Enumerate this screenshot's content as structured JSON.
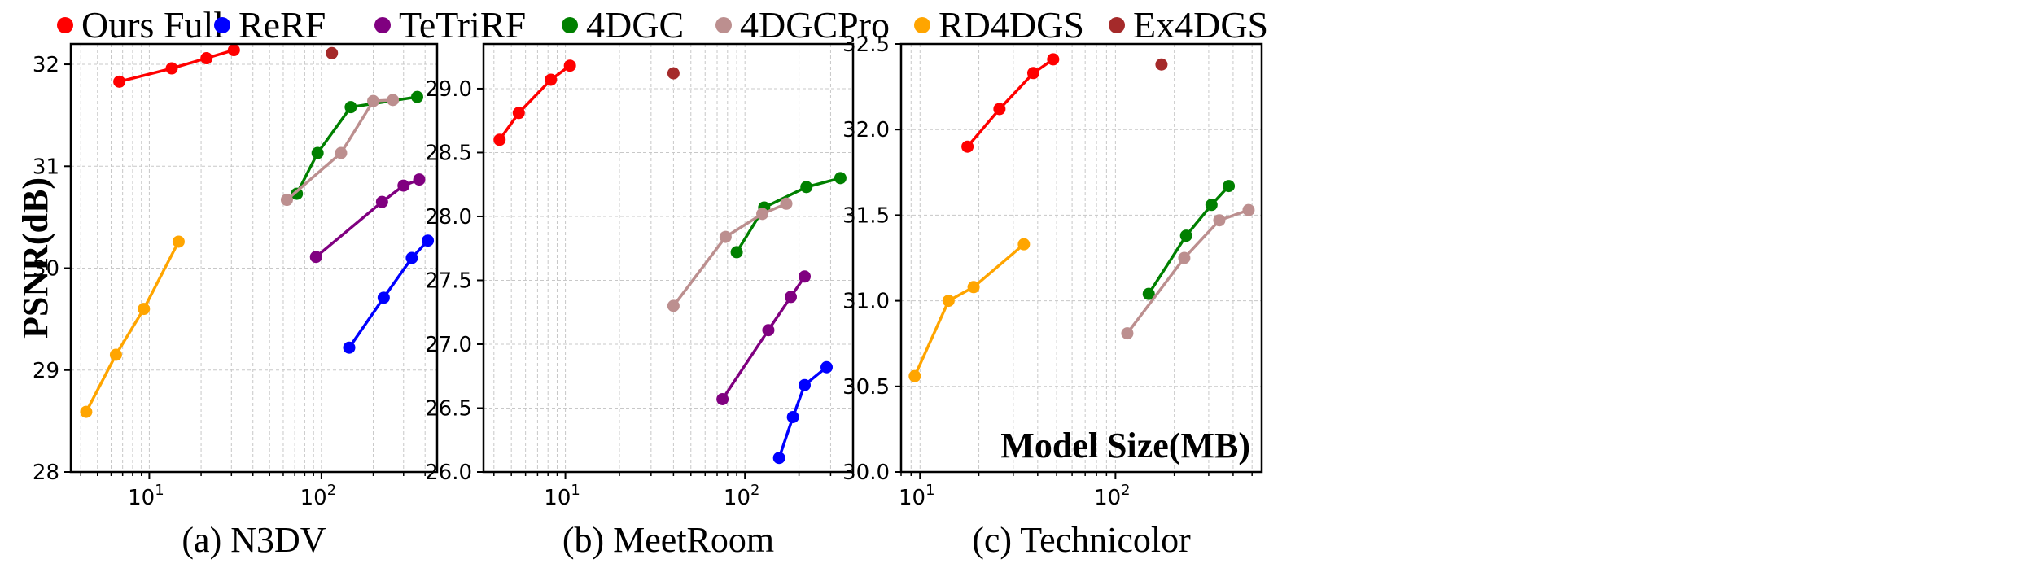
{
  "legend": [
    {
      "name": "Ours Full",
      "color": "#ff0000"
    },
    {
      "name": "ReRF",
      "color": "#0000ff"
    },
    {
      "name": "TeTriRF",
      "color": "#800080"
    },
    {
      "name": "4DGC",
      "color": "#008000"
    },
    {
      "name": "4DGCPro",
      "color": "#bc8f8f"
    },
    {
      "name": "RD4DGS",
      "color": "#ffa500"
    },
    {
      "name": "Ex4DGS",
      "color": "#a52a2a"
    }
  ],
  "chart_data": [
    {
      "type": "line",
      "caption": "(a) N3DV",
      "ylabel": "PSNR(dB)",
      "xlabel": "",
      "xscale": "log",
      "xlim": [
        3.5,
        470
      ],
      "ylim": [
        28,
        32.2
      ],
      "grid": true,
      "yticks": [
        28,
        29,
        30,
        31,
        32
      ],
      "xticks": [
        {
          "value": 10,
          "base": "10",
          "exp": "1"
        },
        {
          "value": 100,
          "base": "10",
          "exp": "2"
        }
      ],
      "series": [
        {
          "name": "Ours Full",
          "x": [
            6.7,
            13.5,
            21.5,
            31
          ],
          "y": [
            31.83,
            31.96,
            32.06,
            32.14
          ]
        },
        {
          "name": "ReRF",
          "x": [
            145,
            230,
            335,
            415
          ],
          "y": [
            29.22,
            29.71,
            30.1,
            30.27
          ]
        },
        {
          "name": "TeTriRF",
          "x": [
            93,
            225,
            300,
            370
          ],
          "y": [
            30.11,
            30.65,
            30.81,
            30.87
          ]
        },
        {
          "name": "4DGC",
          "x": [
            72,
            95,
            148,
            360
          ],
          "y": [
            30.73,
            31.13,
            31.58,
            31.68
          ]
        },
        {
          "name": "4DGCPro",
          "x": [
            63,
            130,
            200,
            260
          ],
          "y": [
            30.67,
            31.13,
            31.64,
            31.65
          ]
        },
        {
          "name": "RD4DGS",
          "x": [
            4.3,
            6.4,
            9.3,
            14.8
          ],
          "y": [
            28.59,
            29.15,
            29.6,
            30.26
          ]
        },
        {
          "name": "Ex4DGS",
          "x": [
            115
          ],
          "y": [
            32.11
          ]
        }
      ]
    },
    {
      "type": "line",
      "caption": "(b) MeetRoom",
      "ylabel": "",
      "xlabel": "",
      "xscale": "log",
      "xlim": [
        3.5,
        400
      ],
      "ylim": [
        26.0,
        29.35
      ],
      "grid": true,
      "yticks": [
        26.0,
        26.5,
        27.0,
        27.5,
        28.0,
        28.5,
        29.0
      ],
      "xticks": [
        {
          "value": 10,
          "base": "10",
          "exp": "1"
        },
        {
          "value": 100,
          "base": "10",
          "exp": "2"
        }
      ],
      "series": [
        {
          "name": "Ours Full",
          "x": [
            4.3,
            5.5,
            8.3,
            10.6
          ],
          "y": [
            28.6,
            28.81,
            29.07,
            29.18
          ]
        },
        {
          "name": "ReRF",
          "x": [
            155,
            185,
            215,
            285
          ],
          "y": [
            26.11,
            26.43,
            26.68,
            26.82
          ]
        },
        {
          "name": "TeTriRF",
          "x": [
            75,
            135,
            180,
            215
          ],
          "y": [
            26.57,
            27.11,
            27.37,
            27.53
          ]
        },
        {
          "name": "4DGC",
          "x": [
            90,
            128,
            220,
            340
          ],
          "y": [
            27.72,
            28.07,
            28.23,
            28.3
          ]
        },
        {
          "name": "4DGCPro",
          "x": [
            40,
            78,
            125,
            170
          ],
          "y": [
            27.3,
            27.84,
            28.02,
            28.1
          ]
        },
        {
          "name": "Ex4DGS",
          "x": [
            40
          ],
          "y": [
            29.12
          ]
        }
      ]
    },
    {
      "type": "line",
      "caption": "(c) Technicolor",
      "ylabel": "",
      "xlabel": "",
      "xscale": "log",
      "xlim": [
        8,
        560
      ],
      "ylim": [
        30.0,
        32.5
      ],
      "grid": true,
      "annotation": "Model Size(MB)",
      "yticks": [
        30.0,
        30.5,
        31.0,
        31.5,
        32.0,
        32.5
      ],
      "xticks": [
        {
          "value": 10,
          "base": "10",
          "exp": "1"
        },
        {
          "value": 100,
          "base": "10",
          "exp": "2"
        }
      ],
      "series": [
        {
          "name": "Ours Full",
          "x": [
            17.5,
            25.5,
            38,
            48
          ],
          "y": [
            31.9,
            32.12,
            32.33,
            32.41
          ]
        },
        {
          "name": "4DGC",
          "x": [
            148,
            230,
            310,
            380
          ],
          "y": [
            31.04,
            31.38,
            31.56,
            31.67
          ]
        },
        {
          "name": "4DGCPro",
          "x": [
            115,
            225,
            340,
            480
          ],
          "y": [
            30.81,
            31.25,
            31.47,
            31.53
          ]
        },
        {
          "name": "RD4DGS",
          "x": [
            9.4,
            14,
            18.8,
            34
          ],
          "y": [
            30.56,
            31.0,
            31.08,
            31.33
          ]
        },
        {
          "name": "Ex4DGS",
          "x": [
            172
          ],
          "y": [
            32.38
          ]
        }
      ]
    }
  ]
}
